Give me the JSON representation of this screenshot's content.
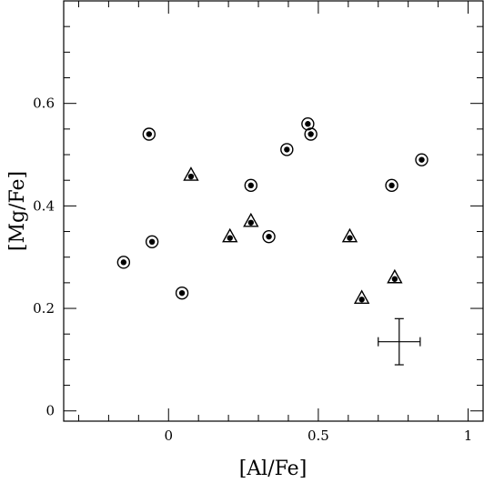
{
  "chart_data": {
    "type": "scatter",
    "xlabel": "[Al/Fe]",
    "ylabel": "[Mg/Fe]",
    "xlim": [
      -0.35,
      1.05
    ],
    "ylim": [
      -0.02,
      0.8
    ],
    "x_ticks": [
      {
        "value": 0,
        "label": "0"
      },
      {
        "value": 0.5,
        "label": "0.5"
      },
      {
        "value": 1,
        "label": "1"
      }
    ],
    "y_ticks": [
      {
        "value": 0,
        "label": "0"
      },
      {
        "value": 0.2,
        "label": "0.2"
      },
      {
        "value": 0.4,
        "label": "0.4"
      },
      {
        "value": 0.6,
        "label": "0.6"
      }
    ],
    "x_minor_step": 0.1,
    "y_minor_step": 0.05,
    "grid": false,
    "series": [
      {
        "marker": "circle-dot",
        "points": [
          {
            "x": -0.15,
            "y": 0.29
          },
          {
            "x": -0.065,
            "y": 0.54
          },
          {
            "x": -0.055,
            "y": 0.33
          },
          {
            "x": 0.045,
            "y": 0.23
          },
          {
            "x": 0.275,
            "y": 0.44
          },
          {
            "x": 0.335,
            "y": 0.34
          },
          {
            "x": 0.395,
            "y": 0.51
          },
          {
            "x": 0.465,
            "y": 0.56
          },
          {
            "x": 0.475,
            "y": 0.54
          },
          {
            "x": 0.745,
            "y": 0.44
          },
          {
            "x": 0.845,
            "y": 0.49
          }
        ]
      },
      {
        "marker": "triangle-dot",
        "points": [
          {
            "x": 0.075,
            "y": 0.46
          },
          {
            "x": 0.205,
            "y": 0.34
          },
          {
            "x": 0.275,
            "y": 0.37
          },
          {
            "x": 0.605,
            "y": 0.34
          },
          {
            "x": 0.645,
            "y": 0.22
          },
          {
            "x": 0.755,
            "y": 0.26
          }
        ]
      }
    ],
    "error_bar": {
      "x": 0.77,
      "y": 0.135,
      "xerr": 0.07,
      "yerr": 0.045
    }
  }
}
